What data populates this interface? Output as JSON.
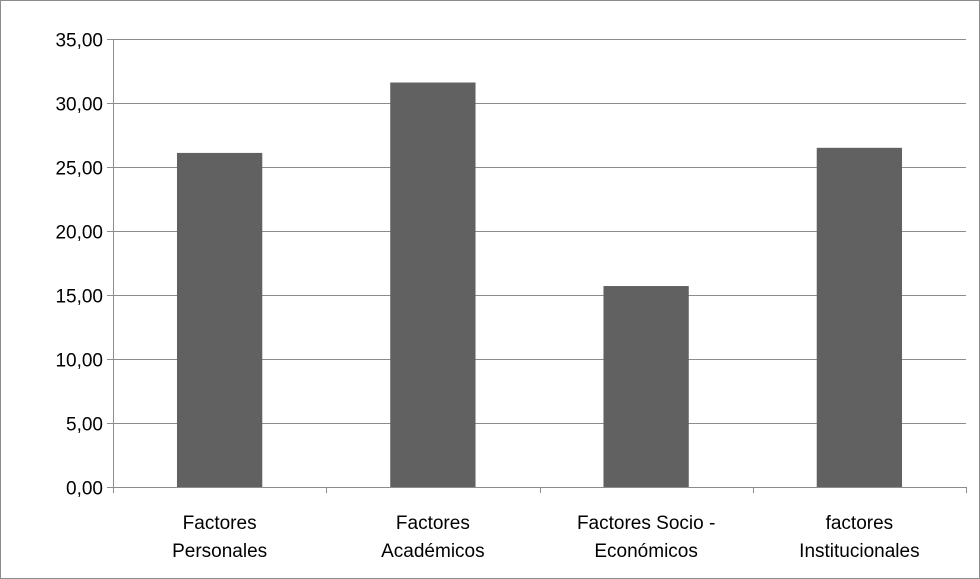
{
  "chart_data": {
    "type": "bar",
    "categories": [
      [
        "Factores",
        "Personales"
      ],
      [
        "Factores",
        "Académicos"
      ],
      [
        "Factores Socio -",
        "Económicos"
      ],
      [
        "factores",
        "Institucionales"
      ]
    ],
    "values": [
      26.1,
      31.6,
      15.7,
      26.5
    ],
    "ylim": [
      0,
      35
    ],
    "ytick_step": 5,
    "ytick_labels": [
      "0,00",
      "5,00",
      "10,00",
      "15,00",
      "20,00",
      "25,00",
      "30,00",
      "35,00"
    ],
    "grid": true,
    "bar_color": "#616161",
    "grid_color": "#8c8c8c",
    "title": "",
    "xlabel": "",
    "ylabel": ""
  }
}
